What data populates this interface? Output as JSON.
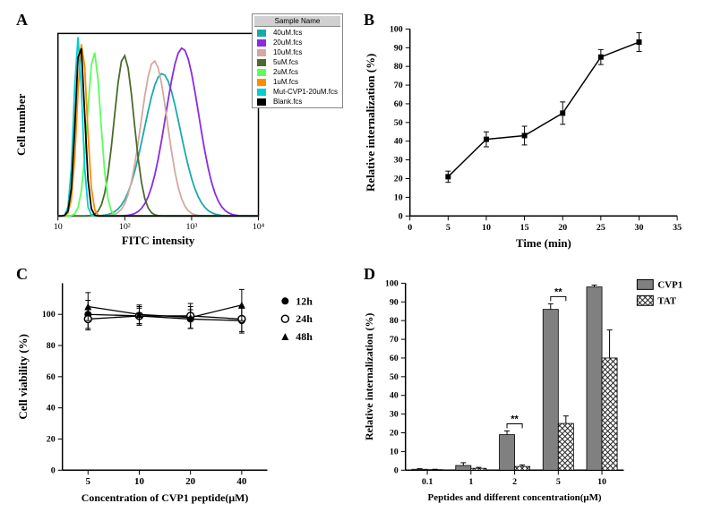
{
  "panelA": {
    "label": "A",
    "type": "histogram-overlay",
    "xlabel": "FITC intensity",
    "ylabel": "Cell number",
    "x_axis_type": "log",
    "x_ticks": [
      10,
      100,
      1000,
      10000
    ],
    "x_tick_labels": [
      "10",
      "10²",
      "10³",
      "10⁴"
    ],
    "legend_header": "Sample Name",
    "series": [
      {
        "name": "40uM.fcs",
        "color": "#1aa9a9",
        "peak_x": 0.52,
        "peak_h": 0.78,
        "width": 0.22
      },
      {
        "name": "20uM.fcs",
        "color": "#8a2be2",
        "peak_x": 0.62,
        "peak_h": 0.92,
        "width": 0.2
      },
      {
        "name": "10uM.fcs",
        "color": "#d4a8a0",
        "peak_x": 0.48,
        "peak_h": 0.85,
        "width": 0.16
      },
      {
        "name": "5uM.fcs",
        "color": "#4a6b2a",
        "peak_x": 0.33,
        "peak_h": 0.88,
        "width": 0.12
      },
      {
        "name": "2uM.fcs",
        "color": "#5aff5a",
        "peak_x": 0.18,
        "peak_h": 0.9,
        "width": 0.08
      },
      {
        "name": "1uM.fcs",
        "color": "#ff8c00",
        "peak_x": 0.12,
        "peak_h": 0.95,
        "width": 0.06
      },
      {
        "name": "Mut-CVP1-20uM.fcs",
        "color": "#00ced1",
        "peak_x": 0.1,
        "peak_h": 0.98,
        "width": 0.05
      },
      {
        "name": "Blank.fcs",
        "color": "#000000",
        "peak_x": 0.11,
        "peak_h": 0.96,
        "width": 0.055
      }
    ]
  },
  "panelB": {
    "label": "B",
    "type": "line",
    "xlabel": "Time (min)",
    "ylabel": "Relative internalization (%)",
    "xlim": [
      0,
      35
    ],
    "ylim": [
      0,
      100
    ],
    "xtick_step": 5,
    "ytick_step": 10,
    "marker": "square",
    "line_color": "#000000",
    "data": [
      {
        "x": 5,
        "y": 21,
        "err": 3
      },
      {
        "x": 10,
        "y": 41,
        "err": 4
      },
      {
        "x": 15,
        "y": 43,
        "err": 5
      },
      {
        "x": 20,
        "y": 55,
        "err": 6
      },
      {
        "x": 25,
        "y": 85,
        "err": 4
      },
      {
        "x": 30,
        "y": 93,
        "err": 5
      }
    ]
  },
  "panelC": {
    "label": "C",
    "type": "line",
    "xlabel": "Concentration of CVP1 peptide(μM)",
    "ylabel": "Cell viability (%)",
    "x_categories": [
      "5",
      "10",
      "20",
      "40"
    ],
    "ylim": [
      0,
      100
    ],
    "ytick_step": 20,
    "series": [
      {
        "name": "12h",
        "marker": "filled-circle",
        "color": "#000000",
        "data": [
          {
            "y": 100,
            "err": 9
          },
          {
            "y": 99,
            "err": 5
          },
          {
            "y": 97,
            "err": 6
          },
          {
            "y": 96,
            "err": 8
          }
        ]
      },
      {
        "name": "24h",
        "marker": "open-circle",
        "color": "#000000",
        "data": [
          {
            "y": 97,
            "err": 7
          },
          {
            "y": 99,
            "err": 6
          },
          {
            "y": 99,
            "err": 8
          },
          {
            "y": 97,
            "err": 8
          }
        ]
      },
      {
        "name": "48h",
        "marker": "filled-triangle",
        "color": "#000000",
        "data": [
          {
            "y": 105,
            "err": 9
          },
          {
            "y": 100,
            "err": 6
          },
          {
            "y": 98,
            "err": 7
          },
          {
            "y": 106,
            "err": 10
          }
        ]
      }
    ]
  },
  "panelD": {
    "label": "D",
    "type": "bar",
    "xlabel": "Peptides and different concentration(μM)",
    "ylabel": "Relative internalization (%)",
    "x_categories": [
      "0.1",
      "1",
      "2",
      "5",
      "10"
    ],
    "ylim": [
      0,
      100
    ],
    "ytick_step": 10,
    "bar_width": 0.35,
    "series": [
      {
        "name": "CVP1",
        "fill": "#808080",
        "pattern": "solid",
        "data": [
          {
            "y": 0.5,
            "err": 0.3
          },
          {
            "y": 2.5,
            "err": 1.5
          },
          {
            "y": 19,
            "err": 2
          },
          {
            "y": 86,
            "err": 3
          },
          {
            "y": 98,
            "err": 1
          }
        ]
      },
      {
        "name": "TAT",
        "fill": "#ffffff",
        "pattern": "crosshatch",
        "data": [
          {
            "y": 0.3,
            "err": 0.2
          },
          {
            "y": 1,
            "err": 0.5
          },
          {
            "y": 2,
            "err": 0.8
          },
          {
            "y": 25,
            "err": 4
          },
          {
            "y": 60,
            "err": 15
          }
        ]
      }
    ],
    "significance": [
      {
        "between_idx": 2,
        "label": "**"
      },
      {
        "between_idx": 3,
        "label": "**"
      }
    ]
  }
}
